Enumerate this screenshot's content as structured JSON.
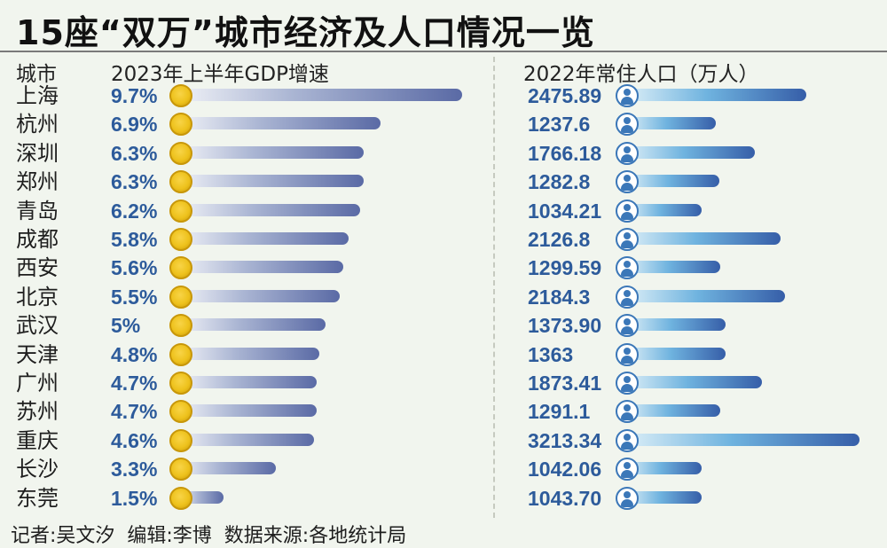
{
  "title": "15座“双万”城市经济及人口情况一览",
  "header": {
    "city": "城市",
    "gdp": "2023年上半年GDP增速",
    "pop": "2022年常住人口（万人）"
  },
  "footer": "记者:吴文汐  编辑:李博  数据来源:各地统计局",
  "colors": {
    "value_text": "#2d5b9b",
    "coin": "#eec21d",
    "person_icon": "#3b77b8"
  },
  "icons": {
    "gdp": "coin-icon",
    "pop": "person-icon"
  },
  "chart_data": {
    "type": "bar",
    "categories": [
      "上海",
      "杭州",
      "深圳",
      "郑州",
      "青岛",
      "成都",
      "西安",
      "北京",
      "武汉",
      "天津",
      "广州",
      "苏州",
      "重庆",
      "长沙",
      "东莞"
    ],
    "series": [
      {
        "name": "2023年上半年GDP增速",
        "values": [
          9.7,
          6.9,
          6.3,
          6.3,
          6.2,
          5.8,
          5.6,
          5.5,
          5,
          4.8,
          4.7,
          4.7,
          4.6,
          3.3,
          1.5
        ],
        "labels": [
          "9.7%",
          "6.9%",
          "6.3%",
          "6.3%",
          "6.2%",
          "5.8%",
          "5.6%",
          "5.5%",
          "5%",
          "4.8%",
          "4.7%",
          "4.7%",
          "4.6%",
          "3.3%",
          "1.5%"
        ]
      },
      {
        "name": "2022年常住人口（万人）",
        "values": [
          2475.89,
          1237.6,
          1766.18,
          1282.8,
          1034.21,
          2126.8,
          1299.59,
          2184.3,
          1373.9,
          1363,
          1873.41,
          1291.1,
          3213.34,
          1042.06,
          1043.7
        ],
        "labels": [
          "2475.89",
          "1237.6",
          "1766.18",
          "1282.8",
          "1034.21",
          "2126.8",
          "1299.59",
          "2184.3",
          "1373.90",
          "1363",
          "1873.41",
          "1291.1",
          "3213.34",
          "1042.06",
          "1043.70"
        ]
      }
    ]
  }
}
